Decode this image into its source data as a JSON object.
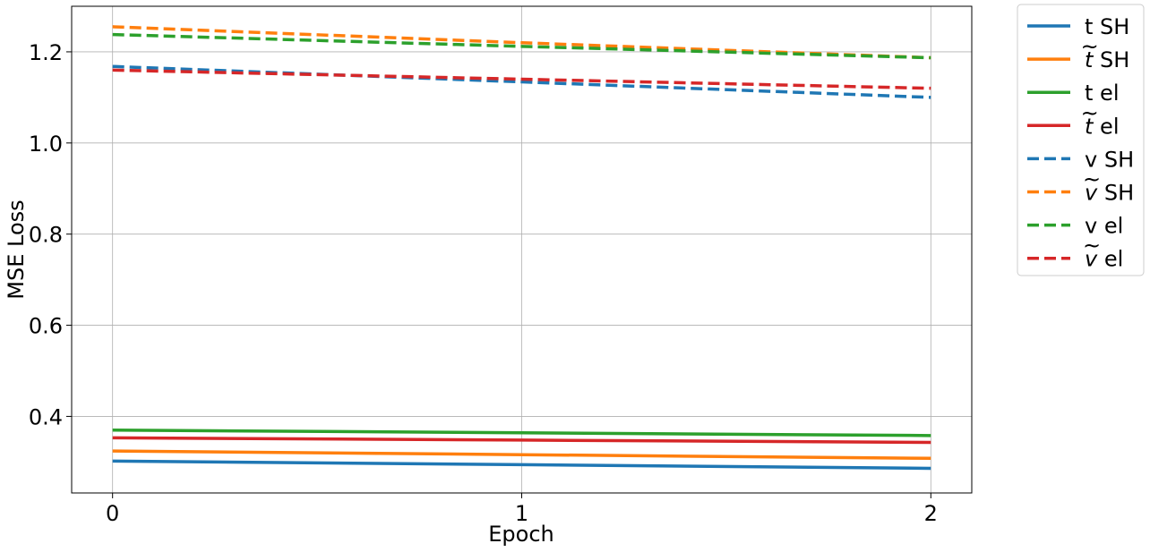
{
  "chart_data": {
    "type": "line",
    "xlabel": "Epoch",
    "ylabel": "MSE Loss",
    "x": [
      0,
      1,
      2
    ],
    "xticks": [
      "0",
      "1",
      "2"
    ],
    "yticks": [
      "0.4",
      "0.6",
      "0.8",
      "1.0",
      "1.2"
    ],
    "ytick_values": [
      0.4,
      0.6,
      0.8,
      1.0,
      1.2
    ],
    "xlim": [
      -0.1,
      2.1
    ],
    "ylim": [
      0.232,
      1.3
    ],
    "grid": true,
    "legend_position": "outside-right",
    "series": [
      {
        "name": "t SH",
        "base": "t",
        "suffix": " SH",
        "tilde": false,
        "style": "solid",
        "color": "#1f77b4",
        "values": [
          0.302,
          0.294,
          0.286
        ]
      },
      {
        "name": "t̃ SH",
        "base": "t",
        "suffix": " SH",
        "tilde": true,
        "style": "solid",
        "color": "#ff7f0e",
        "values": [
          0.324,
          0.316,
          0.308
        ]
      },
      {
        "name": "t el",
        "base": "t",
        "suffix": " el",
        "tilde": false,
        "style": "solid",
        "color": "#2ca02c",
        "values": [
          0.37,
          0.364,
          0.358
        ]
      },
      {
        "name": "t̃ el",
        "base": "t",
        "suffix": " el",
        "tilde": true,
        "style": "solid",
        "color": "#d62728",
        "values": [
          0.353,
          0.348,
          0.343
        ]
      },
      {
        "name": "v SH",
        "base": "v",
        "suffix": " SH",
        "tilde": false,
        "style": "dashed",
        "color": "#1f77b4",
        "values": [
          1.168,
          1.134,
          1.1
        ]
      },
      {
        "name": "ṽ SH",
        "base": "v",
        "suffix": " SH",
        "tilde": true,
        "style": "dashed",
        "color": "#ff7f0e",
        "values": [
          1.255,
          1.22,
          1.187
        ]
      },
      {
        "name": "v el",
        "base": "v",
        "suffix": " el",
        "tilde": false,
        "style": "dashed",
        "color": "#2ca02c",
        "values": [
          1.238,
          1.212,
          1.187
        ]
      },
      {
        "name": "ṽ el",
        "base": "v",
        "suffix": " el",
        "tilde": true,
        "style": "dashed",
        "color": "#d62728",
        "values": [
          1.16,
          1.14,
          1.12
        ]
      }
    ]
  }
}
